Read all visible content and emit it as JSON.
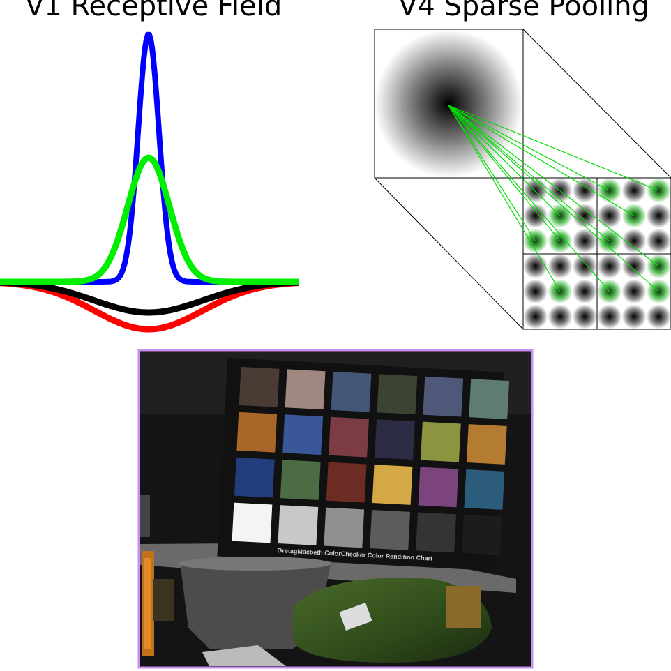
{
  "panels": {
    "v1": {
      "title": "V1 Receptive Field"
    },
    "v4": {
      "title": "V4 Sparse Pooling"
    }
  },
  "curves": {
    "blue": {
      "color": "#0000ff"
    },
    "green": {
      "color": "#00ee00"
    },
    "black": {
      "color": "#000000"
    },
    "red": {
      "color": "#ff0000"
    }
  },
  "pooling": {
    "line_color": "#00dd00",
    "grid_rows": 6,
    "grid_cols": 6
  },
  "photo": {
    "frame_color": "#c98ef0",
    "chart_label": "GretagMacbeth ColorChecker Color Rendition Chart",
    "swatches": [
      [
        "#4a3c34",
        "#a08880",
        "#435878",
        "#3a4430",
        "#4f5878",
        "#5e7c74"
      ],
      [
        "#a86628",
        "#3a5898",
        "#7c3c44",
        "#2c2c44",
        "#8c9440",
        "#b47c30"
      ],
      [
        "#223c7c",
        "#4c6c44",
        "#6c2c24",
        "#d4a844",
        "#7c447c",
        "#2c5c7c"
      ],
      [
        "#f4f4f4",
        "#c8c8c8",
        "#909090",
        "#5c5c5c",
        "#343434",
        "#1c1c1c"
      ]
    ]
  }
}
